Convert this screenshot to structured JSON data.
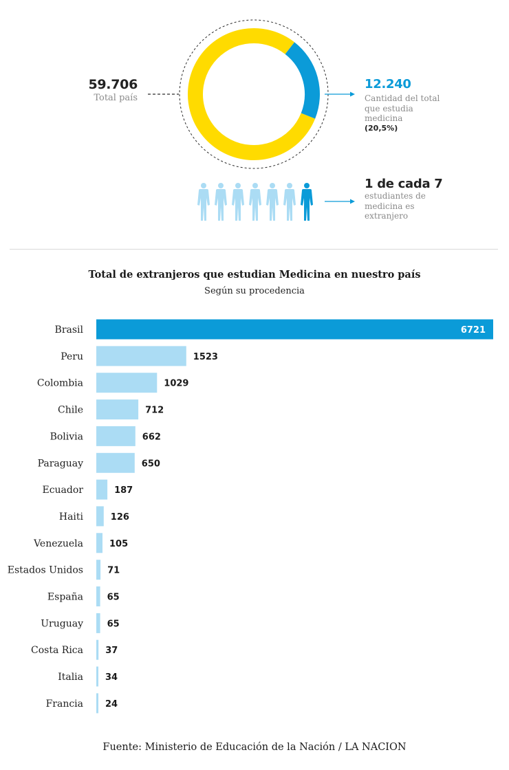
{
  "summary": {
    "total_value": "59.706",
    "total_label": "Total país",
    "medicine_value": "12.240",
    "medicine_label": "Cantidad del total que estudia medicina",
    "medicine_pct": "(20,5%)",
    "ratio_value": "1 de cada 7",
    "ratio_label": "estudiantes de medicina es extranjero",
    "medicine_fraction": 0.205,
    "people_total": 7,
    "people_highlight": 1
  },
  "colors": {
    "yellow": "#ffdb00",
    "blue": "#0b9bd8",
    "light_blue": "#abdcf4",
    "text": "#1f1f1f",
    "muted": "#8a8a8a"
  },
  "icons": {
    "person": "person-icon",
    "arrow": "arrow-right-icon"
  },
  "chart_data": {
    "type": "bar",
    "orientation": "horizontal",
    "title": "Total de extranjeros que estudian Medicina en nuestro país",
    "subtitle": "Según su procedencia",
    "categories": [
      "Brasil",
      "Peru",
      "Colombia",
      "Chile",
      "Bolivia",
      "Paraguay",
      "Ecuador",
      "Haiti",
      "Venezuela",
      "Estados Unidos",
      "España",
      "Uruguay",
      "Costa Rica",
      "Italia",
      "Francia"
    ],
    "values": [
      6721,
      1523,
      1029,
      712,
      662,
      650,
      187,
      126,
      105,
      71,
      65,
      65,
      37,
      34,
      24
    ],
    "xlim": [
      0,
      6721
    ],
    "highlight_index": 0,
    "grid": false
  },
  "footer": {
    "source": "Fuente: Ministerio de Educación de la Nación / LA NACION"
  }
}
